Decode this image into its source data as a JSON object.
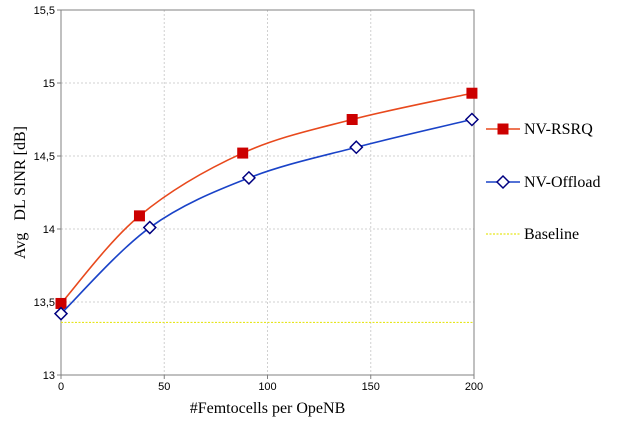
{
  "chart_data": {
    "type": "line",
    "xlabel": "#Femtocells per OpeNB",
    "ylabel": "Avg   DL SINR [dB]",
    "xlim": [
      0,
      200
    ],
    "ylim": [
      13,
      15.5
    ],
    "xticks": [
      0,
      50,
      100,
      150,
      200
    ],
    "xtick_labels": [
      "0",
      "50",
      "100",
      "150",
      "200"
    ],
    "yticks": [
      13,
      13.5,
      14,
      14.5,
      15,
      15.5
    ],
    "ytick_labels": [
      "13",
      "13,5",
      "14",
      "14,5",
      "15",
      "15,5"
    ],
    "grid": true,
    "legend_placement": "right",
    "series": [
      {
        "name": "NV-RSRQ",
        "color": "#e8491d",
        "marker_color": "#cc0000",
        "marker": "square",
        "x": [
          0,
          38,
          88,
          141,
          199
        ],
        "y": [
          13.49,
          14.09,
          14.52,
          14.75,
          14.93
        ]
      },
      {
        "name": "NV-Offload",
        "color": "#1a43c8",
        "marker_color": "#000080",
        "marker": "diamond",
        "x": [
          0,
          43,
          91,
          143,
          199
        ],
        "y": [
          13.42,
          14.01,
          14.35,
          14.56,
          14.75
        ]
      },
      {
        "name": "Baseline",
        "color": "#e6e61e",
        "marker": "none",
        "style": "dotted",
        "x": [
          0,
          200
        ],
        "y": [
          13.36,
          13.36
        ]
      }
    ]
  }
}
